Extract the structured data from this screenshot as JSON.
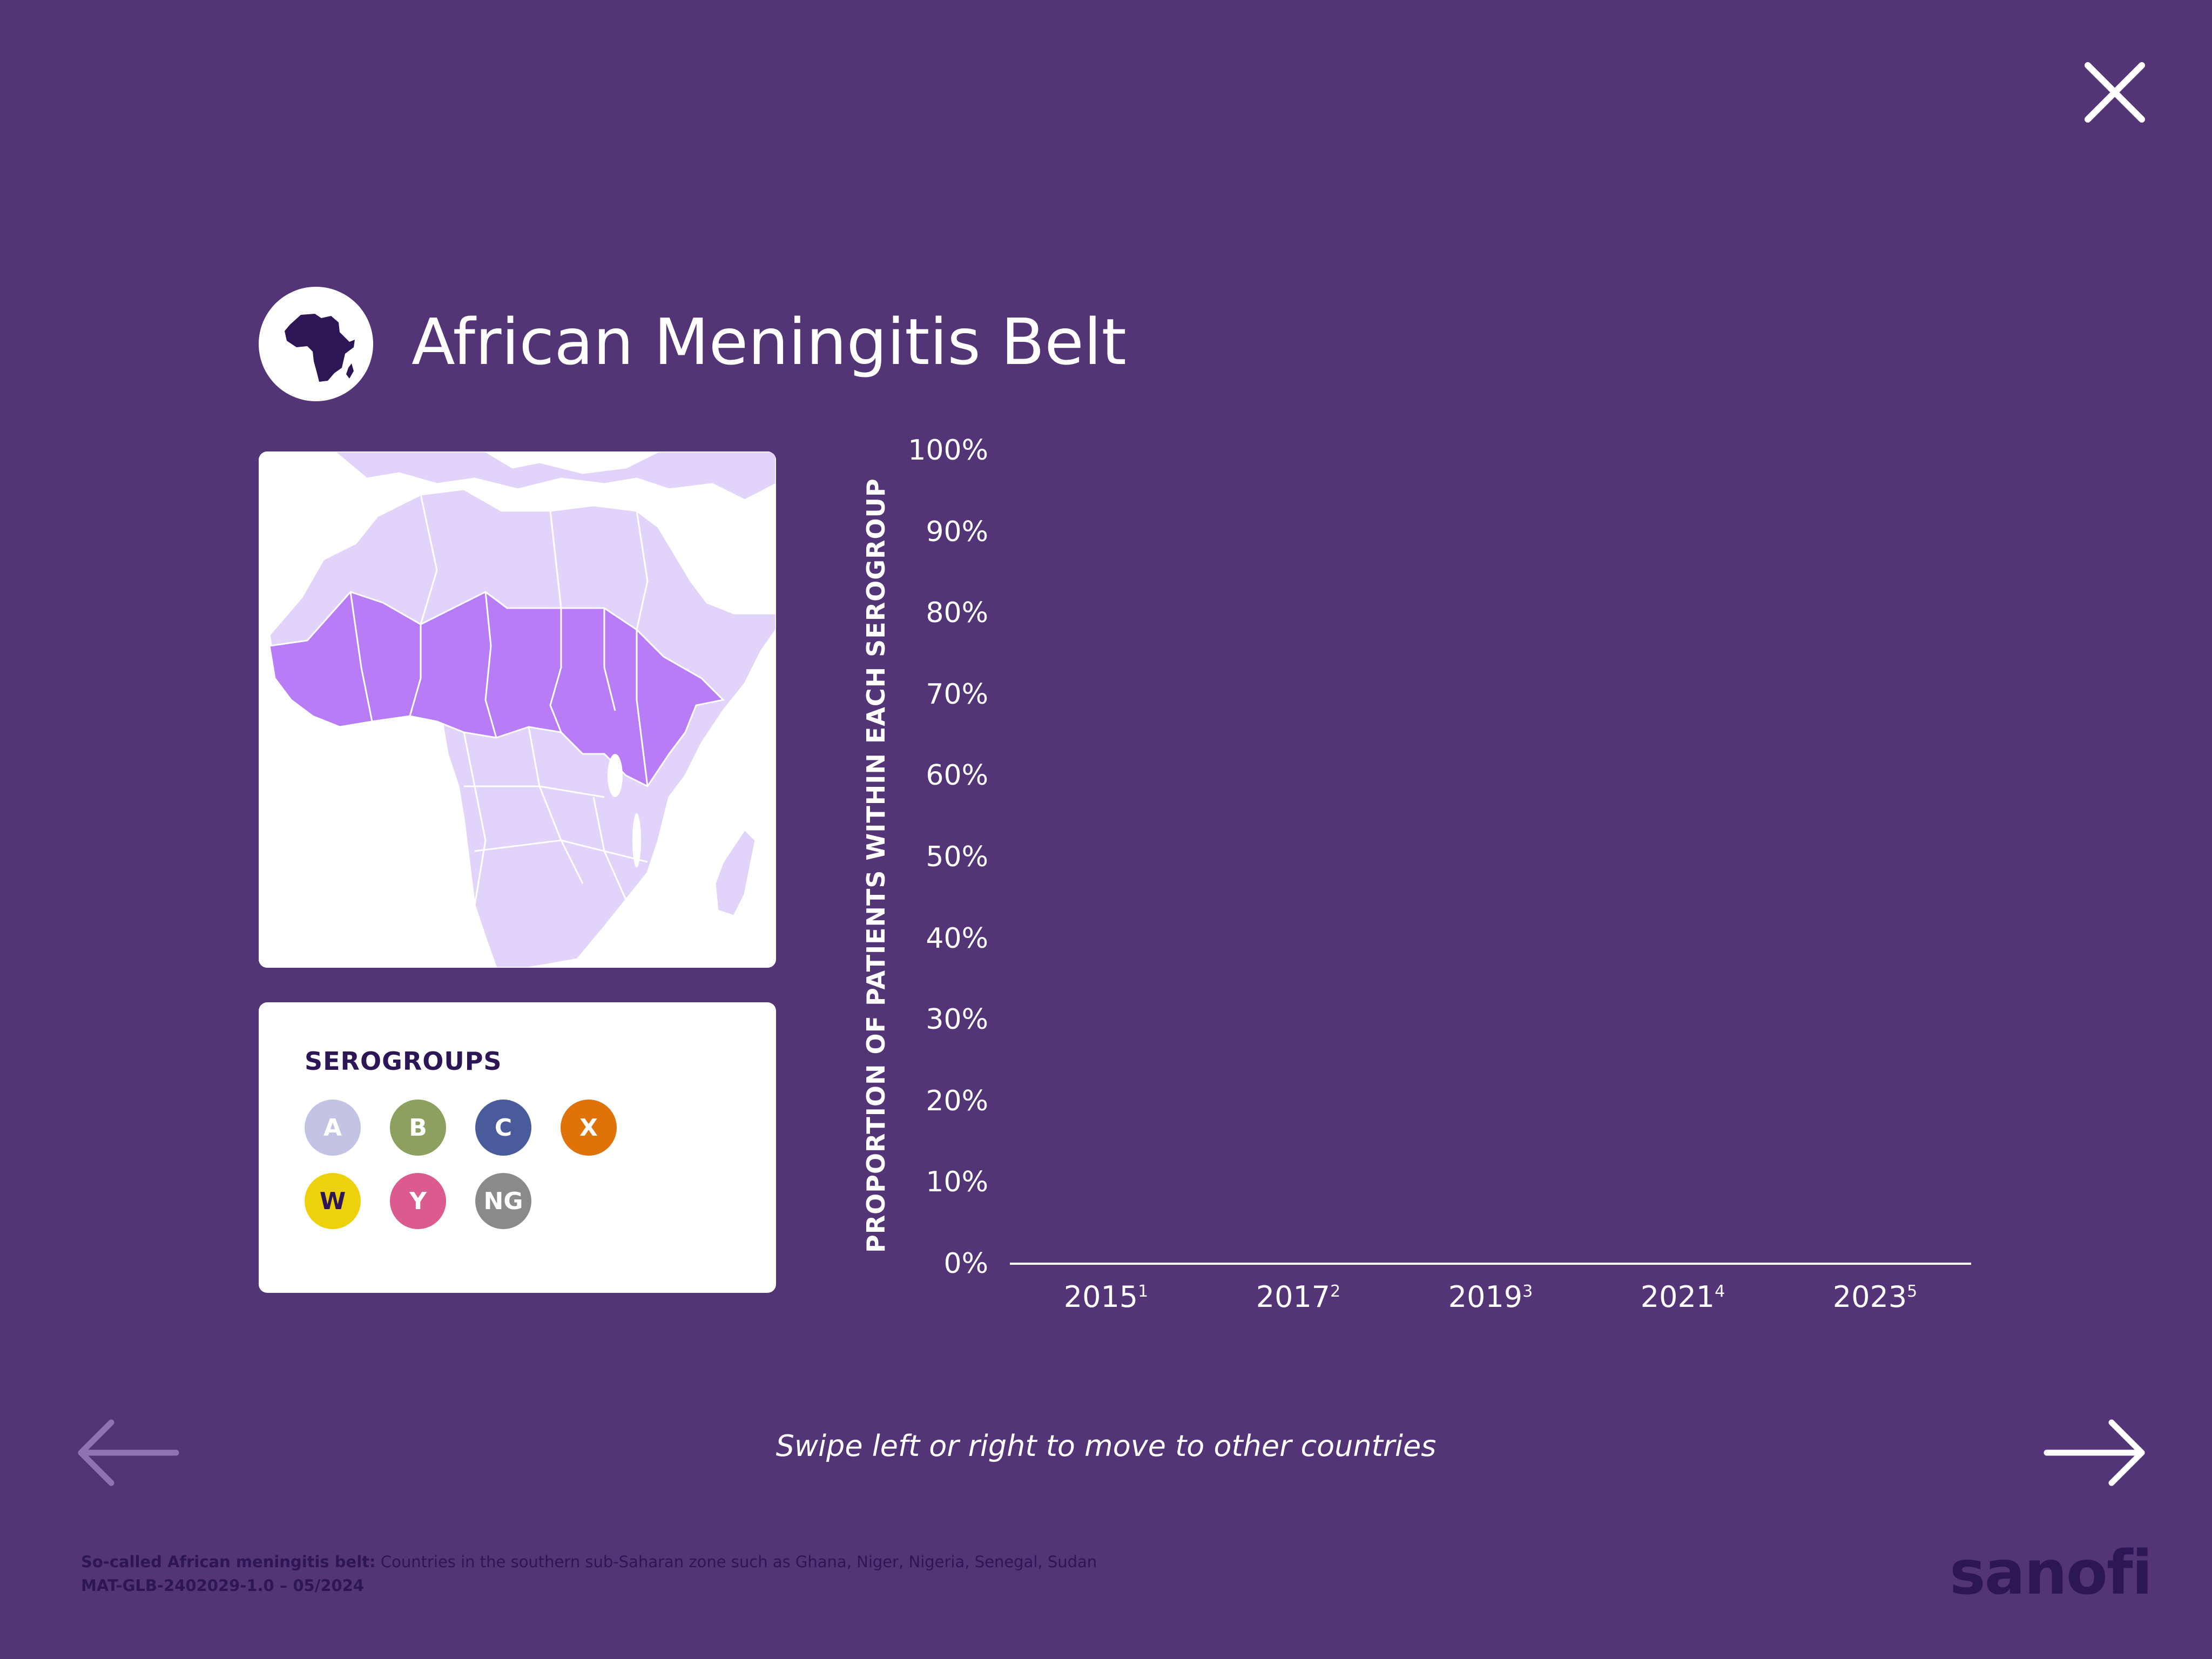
{
  "close": {
    "icon": "close-icon"
  },
  "header": {
    "title": "African Meningitis Belt",
    "badge_icon": "africa-continent-icon"
  },
  "map": {
    "icon": "africa-belt-map",
    "colors": {
      "water": "#ffffff",
      "other_countries": "#e2d3fb",
      "belt_countries": "#b87cf7"
    }
  },
  "legend": {
    "title": "SEROGROUPS",
    "items": [
      {
        "label": "A",
        "color": "#c3c4e4",
        "text_color": "#ffffff"
      },
      {
        "label": "B",
        "color": "#8ca15f",
        "text_color": "#ffffff"
      },
      {
        "label": "C",
        "color": "#4a5b9b",
        "text_color": "#ffffff"
      },
      {
        "label": "X",
        "color": "#e0720a",
        "text_color": "#ffffff"
      },
      {
        "label": "W",
        "color": "#ecd10b",
        "text_color": "#2d1656"
      },
      {
        "label": "Y",
        "color": "#db5b8e",
        "text_color": "#ffffff"
      },
      {
        "label": "NG",
        "color": "#8a8a8a",
        "text_color": "#ffffff"
      }
    ]
  },
  "chart_data": {
    "type": "bar",
    "title": "",
    "xlabel": "",
    "ylabel": "PROPORTION OF  PATIENTS WITHIN EACH  SEROGROUP",
    "categories": [
      "2015",
      "2017",
      "2019",
      "2021",
      "2023"
    ],
    "category_refs": [
      "1",
      "2",
      "3",
      "4",
      "5"
    ],
    "y_ticks": [
      "0%",
      "10%",
      "20%",
      "30%",
      "40%",
      "50%",
      "60%",
      "70%",
      "80%",
      "90%",
      "100%"
    ],
    "ylim": [
      0,
      100
    ],
    "series": []
  },
  "navigation": {
    "prev_icon": "arrow-left-icon",
    "next_icon": "arrow-right-icon",
    "hint": "Swipe left or right to move to other countries"
  },
  "footer": {
    "note_label": "So-called African meningitis belt:",
    "note_text": " Countries in the southern sub-Saharan zone such as Ghana, Niger, Nigeria, Senegal, Sudan",
    "code": "MAT-GLB-2402029-1.0 – 05/2024",
    "brand": "sanofi"
  },
  "colors": {
    "background": "#533477",
    "dark_purple": "#2d1656",
    "white": "#ffffff"
  }
}
